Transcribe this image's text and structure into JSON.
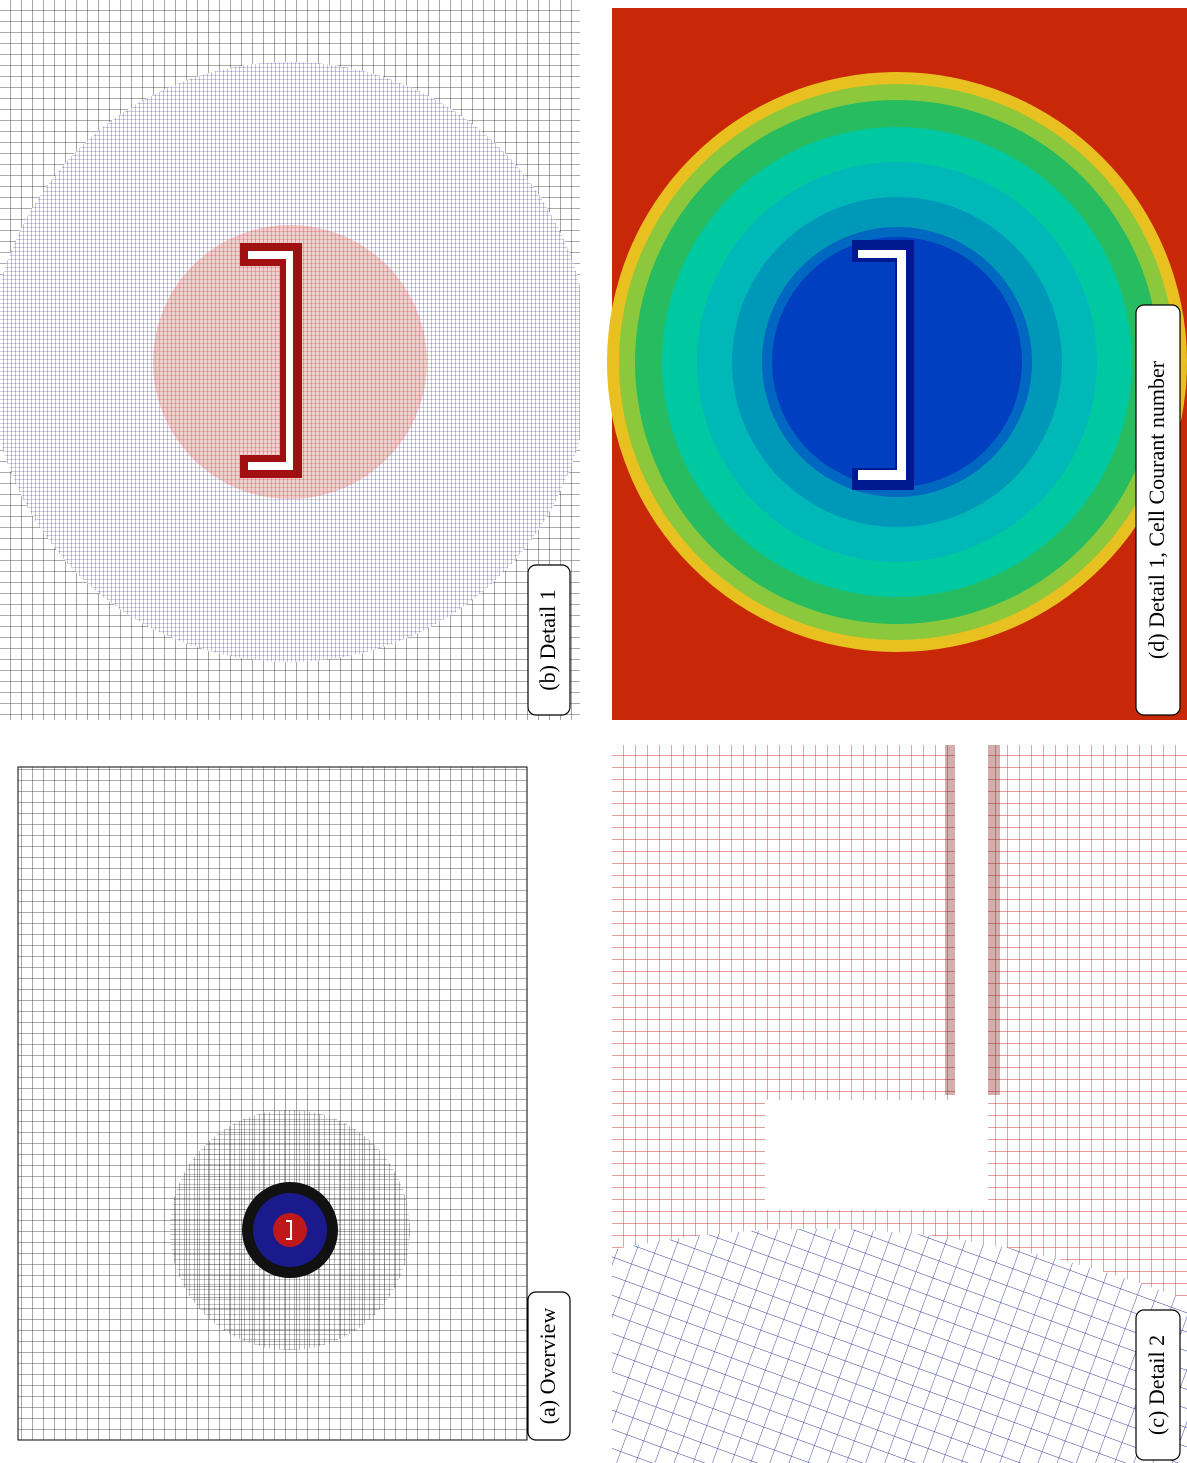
{
  "panels": [
    {
      "label": "(a) Overview"
    },
    {
      "label": "(b) Detail 1"
    },
    {
      "label": "(c) Detail 2"
    },
    {
      "label": "(d) Detail 1, Cell Courant number"
    }
  ]
}
